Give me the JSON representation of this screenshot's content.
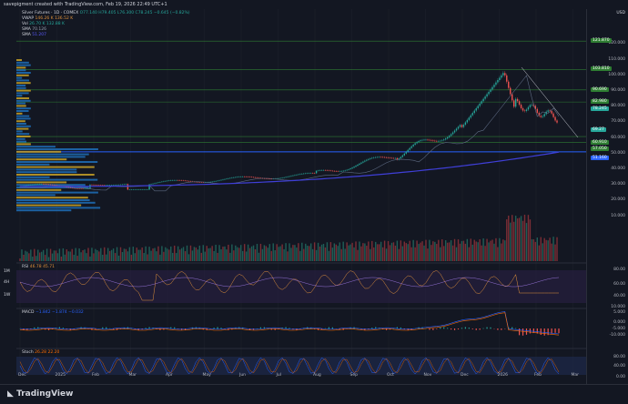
{
  "header": {
    "credit": "savepigment created with TradingView.com, Feb 19, 2026 22:49 UTC+1"
  },
  "legend": {
    "symbol": "Silver Futures · 1D · COMEX",
    "ohlc": "O77.140 H79.405 L76.300 C78.245 −0.645 (−0.82%)",
    "vwap_label": "VWAP",
    "vwap_value": "146.26 K 136.52 K",
    "vol_label": "Vol",
    "vol_value": "26.70 K 132.88 K",
    "sma1_label": "SMA",
    "sma1_value": "70.126",
    "sma2_label": "SMA",
    "sma2_value": "51.207"
  },
  "price_axis": {
    "currency": "USD",
    "ticks": [
      "120.000",
      "110.000",
      "100.000",
      "90.000",
      "80.000",
      "70.000",
      "60.000",
      "50.000",
      "40.000",
      "30.000",
      "20.000",
      "10.000"
    ],
    "labels": [
      {
        "text": "121.870",
        "color": "#2e7d32"
      },
      {
        "text": "103.810",
        "color": "#2e7d32"
      },
      {
        "text": "90.690",
        "color": "#2e7d32"
      },
      {
        "text": "82.980",
        "color": "#2e7d32"
      },
      {
        "text": "78.245",
        "color": "#26a69a"
      },
      {
        "text": "69.27",
        "color": "#26a69a"
      },
      {
        "text": "60.910",
        "color": "#2e7d32"
      },
      {
        "text": "57.050",
        "color": "#2e7d32"
      },
      {
        "text": "51.160",
        "color": "#2962ff"
      }
    ]
  },
  "panes": {
    "rsi": {
      "label": "RSI",
      "values": "46.78 45.71",
      "ticks": [
        "80.00",
        "60.00",
        "40.00"
      ],
      "side_labels": [
        "1M",
        "4H",
        "1W"
      ]
    },
    "macd": {
      "label": "MACD",
      "values": "−1.842 −1.874 −0.032",
      "ticks": [
        "10.000",
        "5.000",
        "0.000",
        "-5.000",
        "-10.000"
      ]
    },
    "stoch": {
      "label": "Stoch",
      "values": "26.28 22.20",
      "ticks": [
        "80.00",
        "40.00",
        "0.00"
      ]
    }
  },
  "time_axis": [
    "Dec",
    "2025",
    "Feb",
    "Mar",
    "Apr",
    "May",
    "Jun",
    "Jul",
    "Aug",
    "Sep",
    "Oct",
    "Nov",
    "Dec",
    "2026",
    "Feb",
    "Mar"
  ],
  "footer": {
    "brand": "TradingView"
  },
  "chart_data": {
    "type": "line",
    "title": "Silver Futures · 1D · COMEX",
    "x": [
      "Dec",
      "2025",
      "Feb",
      "Mar",
      "Apr",
      "May",
      "Jun",
      "Jul",
      "Aug",
      "Sep",
      "Oct",
      "Nov",
      "Dec",
      "2026",
      "Feb"
    ],
    "series": [
      {
        "name": "Silver Futures",
        "values": [
          30,
          29.5,
          32,
          33,
          30,
          33,
          35,
          36,
          37,
          40,
          48,
          50,
          65,
          110,
          78
        ]
      }
    ],
    "ylim": [
      0,
      125
    ],
    "ylabel": "USD"
  }
}
